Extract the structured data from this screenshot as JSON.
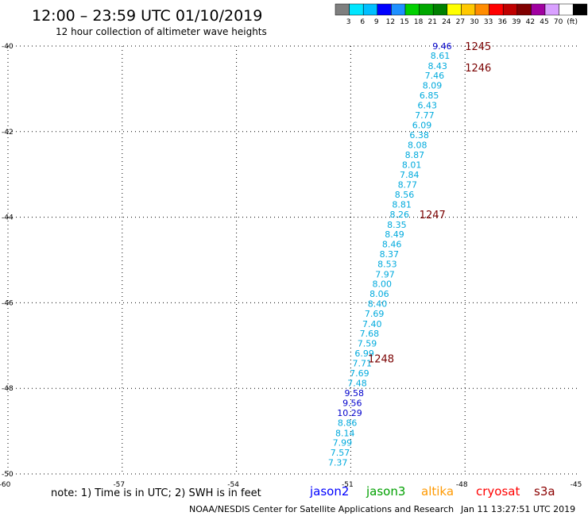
{
  "header": {
    "title": "12:00 – 23:59 UTC 01/10/2019",
    "subtitle": "12 hour collection of altimeter wave heights"
  },
  "legend": {
    "colors": [
      "#7f7f7f",
      "#00e6ff",
      "#00bfff",
      "#0000ff",
      "#1e90ff",
      "#00d000",
      "#00a800",
      "#008000",
      "#ffff00",
      "#ffc800",
      "#ff8c00",
      "#ff0000",
      "#c00000",
      "#800000",
      "#a000a0",
      "#d9a0ff",
      "#ffffff",
      "#000000"
    ],
    "labels": [
      "3",
      "6",
      "9",
      "12",
      "15",
      "18",
      "21",
      "24",
      "27",
      "30",
      "33",
      "36",
      "39",
      "42",
      "45",
      "70",
      "(ft)"
    ]
  },
  "axes": {
    "x_ticks": [
      "-60",
      "-57",
      "-54",
      "-51",
      "-48",
      "-45"
    ],
    "y_ticks": [
      "-40",
      "-42",
      "-44",
      "-46",
      "-48",
      "-50"
    ]
  },
  "map_data": {
    "lat_range": [
      -50,
      -40
    ],
    "lon_range": [
      -60,
      -45
    ],
    "observations": [
      {
        "value": "9.46",
        "lat": -40.0,
        "lon": -48.6,
        "color": "#0000cc"
      },
      {
        "value": "8.61",
        "lat": -40.22,
        "lon": -48.65,
        "color": "#00aadd"
      },
      {
        "value": "8.43",
        "lat": -40.46,
        "lon": -48.72,
        "color": "#00aadd"
      },
      {
        "value": "7.46",
        "lat": -40.69,
        "lon": -48.8,
        "color": "#00aadd"
      },
      {
        "value": "8.09",
        "lat": -40.92,
        "lon": -48.86,
        "color": "#00aadd"
      },
      {
        "value": "6.85",
        "lat": -41.15,
        "lon": -48.94,
        "color": "#00aadd"
      },
      {
        "value": "6.43",
        "lat": -41.38,
        "lon": -48.99,
        "color": "#00aadd"
      },
      {
        "value": "7.77",
        "lat": -41.61,
        "lon": -49.06,
        "color": "#00aadd"
      },
      {
        "value": "6.09",
        "lat": -41.85,
        "lon": -49.13,
        "color": "#00aadd"
      },
      {
        "value": "6.38",
        "lat": -42.08,
        "lon": -49.2,
        "color": "#00aadd"
      },
      {
        "value": "8.08",
        "lat": -42.31,
        "lon": -49.25,
        "color": "#00aadd"
      },
      {
        "value": "8.87",
        "lat": -42.54,
        "lon": -49.32,
        "color": "#00aadd"
      },
      {
        "value": "8.01",
        "lat": -42.77,
        "lon": -49.4,
        "color": "#00aadd"
      },
      {
        "value": "7.84",
        "lat": -43.01,
        "lon": -49.46,
        "color": "#00aadd"
      },
      {
        "value": "8.77",
        "lat": -43.24,
        "lon": -49.51,
        "color": "#00aadd"
      },
      {
        "value": "8.56",
        "lat": -43.47,
        "lon": -49.59,
        "color": "#00aadd"
      },
      {
        "value": "8.81",
        "lat": -43.7,
        "lon": -49.66,
        "color": "#00aadd"
      },
      {
        "value": "8.26",
        "lat": -43.93,
        "lon": -49.72,
        "color": "#00aadd"
      },
      {
        "value": "8.35",
        "lat": -44.17,
        "lon": -49.79,
        "color": "#00aadd"
      },
      {
        "value": "8.49",
        "lat": -44.4,
        "lon": -49.85,
        "color": "#00aadd"
      },
      {
        "value": "8.46",
        "lat": -44.63,
        "lon": -49.92,
        "color": "#00aadd"
      },
      {
        "value": "8.37",
        "lat": -44.86,
        "lon": -49.99,
        "color": "#00aadd"
      },
      {
        "value": "8.53",
        "lat": -45.09,
        "lon": -50.04,
        "color": "#00aadd"
      },
      {
        "value": "7.97",
        "lat": -45.33,
        "lon": -50.1,
        "color": "#00aadd"
      },
      {
        "value": "8.00",
        "lat": -45.56,
        "lon": -50.18,
        "color": "#00aadd"
      },
      {
        "value": "8.06",
        "lat": -45.79,
        "lon": -50.25,
        "color": "#00aadd"
      },
      {
        "value": "8.40",
        "lat": -46.02,
        "lon": -50.3,
        "color": "#00aadd"
      },
      {
        "value": "7.69",
        "lat": -46.25,
        "lon": -50.38,
        "color": "#00aadd"
      },
      {
        "value": "7.40",
        "lat": -46.49,
        "lon": -50.44,
        "color": "#00aadd"
      },
      {
        "value": "7.68",
        "lat": -46.72,
        "lon": -50.51,
        "color": "#00aadd"
      },
      {
        "value": "7.59",
        "lat": -46.95,
        "lon": -50.57,
        "color": "#00aadd"
      },
      {
        "value": "6.99",
        "lat": -47.18,
        "lon": -50.64,
        "color": "#00aadd"
      },
      {
        "value": "7.71",
        "lat": -47.41,
        "lon": -50.7,
        "color": "#00aadd"
      },
      {
        "value": "7.69",
        "lat": -47.64,
        "lon": -50.77,
        "color": "#00aadd"
      },
      {
        "value": "7.48",
        "lat": -47.88,
        "lon": -50.83,
        "color": "#00aadd"
      },
      {
        "value": "9.58",
        "lat": -48.11,
        "lon": -50.91,
        "color": "#0000cc"
      },
      {
        "value": "9.56",
        "lat": -48.34,
        "lon": -50.96,
        "color": "#0000cc"
      },
      {
        "value": "10.29",
        "lat": -48.57,
        "lon": -51.03,
        "color": "#0000cc"
      },
      {
        "value": "8.86",
        "lat": -48.8,
        "lon": -51.09,
        "color": "#00aadd"
      },
      {
        "value": "8.14",
        "lat": -49.04,
        "lon": -51.15,
        "color": "#00aadd"
      },
      {
        "value": "7.99",
        "lat": -49.27,
        "lon": -51.22,
        "color": "#00aadd"
      },
      {
        "value": "7.57",
        "lat": -49.5,
        "lon": -51.28,
        "color": "#00aadd"
      },
      {
        "value": "7.37",
        "lat": -49.73,
        "lon": -51.34,
        "color": "#00aadd"
      }
    ],
    "time_labels": [
      {
        "text": "1245",
        "lat": -40.0,
        "lon": -48.0
      },
      {
        "text": "1246",
        "lat": -40.5,
        "lon": -48.0
      },
      {
        "text": "1247",
        "lat": -43.93,
        "lon": -49.2
      },
      {
        "text": "1248",
        "lat": -47.3,
        "lon": -50.55
      }
    ]
  },
  "note": {
    "text": "note: 1) Time is in UTC; 2) SWH is in feet"
  },
  "satellites": [
    {
      "name": "jason2",
      "color": "#0000ff"
    },
    {
      "name": "jason3",
      "color": "#00a000"
    },
    {
      "name": "altika",
      "color": "#ff9900"
    },
    {
      "name": "cryosat",
      "color": "#ff0000"
    },
    {
      "name": "s3a",
      "color": "#8b0000"
    }
  ],
  "footer": {
    "org": "NOAA/NESDIS Center for Satellite Applications and Research",
    "timestamp": "Jan 11 13:27:51 UTC 2019"
  }
}
